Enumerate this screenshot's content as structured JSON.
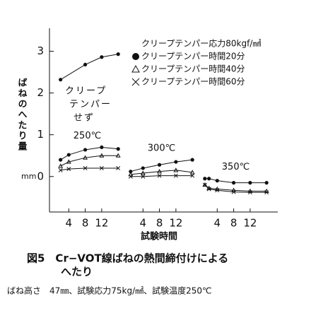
{
  "chart_data": {
    "type": "line",
    "y_label": "ばねのへたり量",
    "y_unit": "mm",
    "x_label": "試験時間",
    "ylim": [
      -0.85,
      3.55
    ],
    "yticks": [
      0,
      1,
      2,
      3
    ],
    "legend_title": "クリープテンパー応力80kgf/㎟",
    "annotation": "クリープ テンパー せず",
    "series": [
      {
        "name": "クリープテンパー時間20分",
        "marker": "dot",
        "color": "#111111"
      },
      {
        "name": "クリープテンパー時間40分",
        "marker": "triangle",
        "color": "#111111"
      },
      {
        "name": "クリープテンパー時間60分",
        "marker": "cross",
        "color": "#111111"
      }
    ],
    "groups": [
      {
        "label": "250℃",
        "xlim": [
          0,
          17
        ],
        "xticks": [
          4,
          8,
          12
        ],
        "untempered": {
          "x": [
            2,
            8,
            12,
            16
          ],
          "values": [
            2.32,
            2.68,
            2.86,
            2.93
          ]
        },
        "x": [
          2,
          4,
          8,
          12,
          16
        ],
        "values": [
          [
            0.4,
            0.52,
            0.64,
            0.7,
            0.66
          ],
          [
            0.25,
            0.35,
            0.45,
            0.5,
            0.5
          ],
          [
            0.15,
            0.18,
            0.2,
            0.2,
            0.2
          ]
        ]
      },
      {
        "label": "300℃",
        "xlim": [
          0,
          17
        ],
        "xticks": [
          4,
          8,
          12
        ],
        "x": [
          1,
          4,
          8,
          12,
          16
        ],
        "values": [
          [
            0.12,
            0.2,
            0.28,
            0.35,
            0.4
          ],
          [
            0.05,
            0.08,
            0.12,
            0.15,
            0.1
          ],
          [
            0,
            0,
            0.02,
            0.02,
            0.02
          ]
        ]
      },
      {
        "label": "350℃",
        "xlim": [
          0,
          17
        ],
        "xticks": [
          4,
          8,
          12
        ],
        "x": [
          1,
          2,
          4,
          8,
          12,
          16
        ],
        "values": [
          [
            -0.05,
            -0.05,
            -0.1,
            -0.15,
            -0.15,
            -0.15
          ],
          [
            -0.2,
            -0.28,
            -0.3,
            -0.33,
            -0.35,
            -0.35
          ],
          [
            -0.2,
            -0.3,
            -0.33,
            -0.37,
            -0.38,
            -0.38
          ]
        ]
      }
    ],
    "caption": [
      "図5　Cr−VOT線ばねの熱間締付けによる",
      "へたり"
    ],
    "note": "ばね高さ　47㎜、試験応力75kg/㎟、試験温度250℃"
  }
}
